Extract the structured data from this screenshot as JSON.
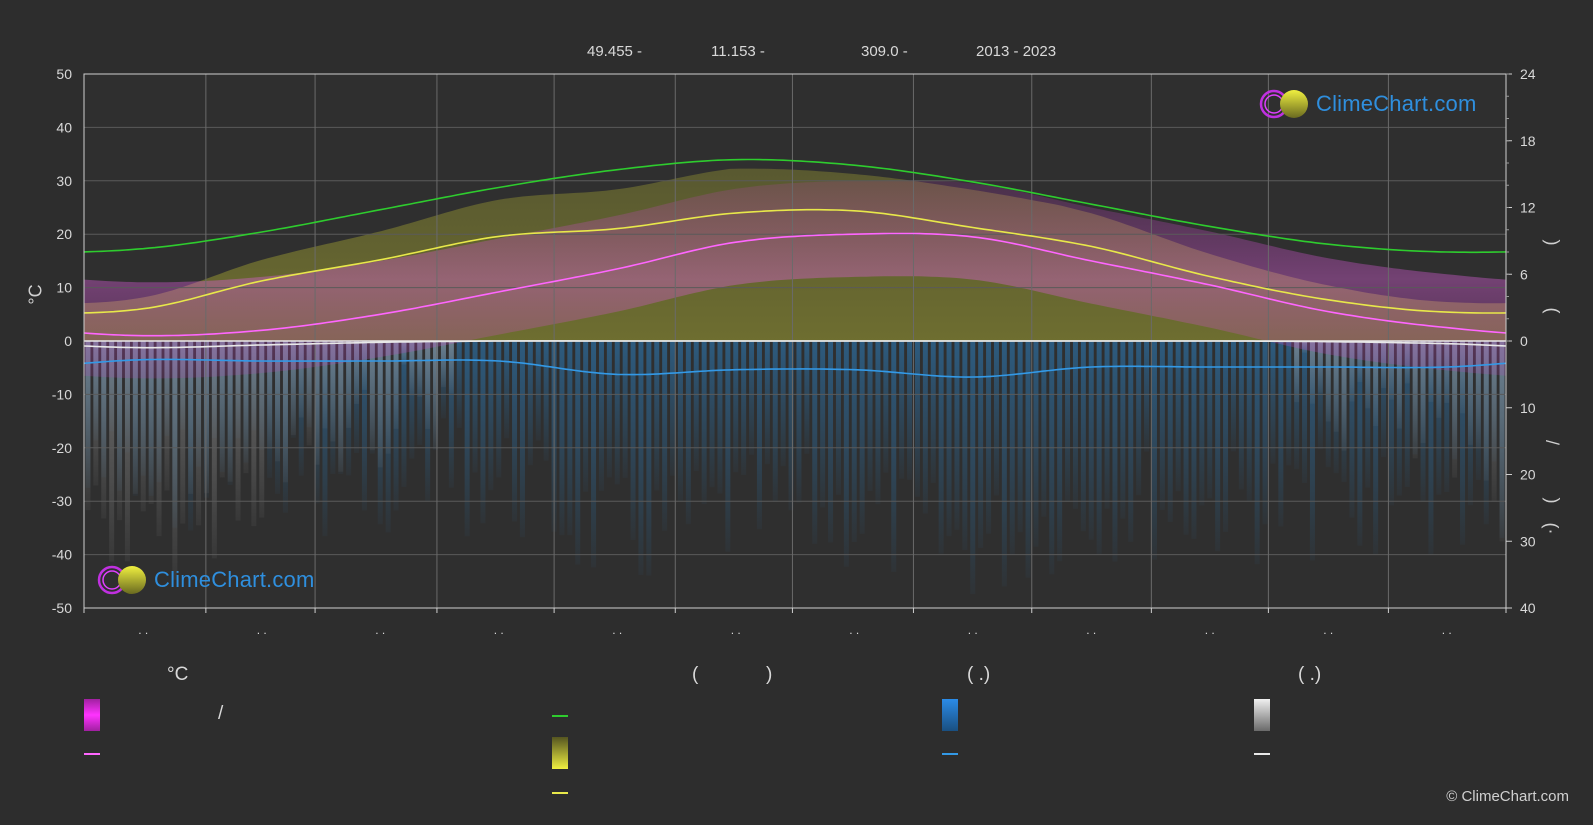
{
  "header": {
    "items": [
      "49.455 -",
      "11.153 -",
      "309.0 -",
      "2013 - 2023"
    ]
  },
  "axes": {
    "left_title": "°C",
    "right_upper_title_glyphs": [
      ")",
      "("
    ],
    "right_lower_title_glyphs": [
      "/",
      ")",
      "(·"
    ]
  },
  "legend": {
    "col1_head": "°C",
    "col1_slash": "/",
    "col2_head_open": "(",
    "col2_head_close": ")",
    "col3_head": "(   .)",
    "col4_head": "(   .)"
  },
  "colors": {
    "background": "#2d2d2d",
    "daylight": "#2ecc2e",
    "sunshine": "#e8e84a",
    "temp_mean": "#ff66ff",
    "temp_range": "#d62ad6",
    "sunshine_fill": "#9a9a2a",
    "precip": "#3399e6",
    "snow": "#d8d8d8",
    "brand": "#2f8fde"
  },
  "logo": {
    "text": "ClimeChart.com"
  },
  "copyright": "© ClimeChart.com",
  "chart_data": {
    "type": "line",
    "months": 12,
    "x_tick_labels": [
      ". .",
      ". .",
      ". .",
      ". .",
      ". .",
      ". .",
      ". .",
      ". .",
      ". .",
      ". .",
      ". .",
      ". ."
    ],
    "left_axis": {
      "ticks": [
        50,
        40,
        30,
        20,
        10,
        0,
        -10,
        -20,
        -30,
        -40,
        -50
      ],
      "range": [
        -50,
        50
      ]
    },
    "right_axis_upper": {
      "ticks": [
        24,
        18,
        12,
        6,
        0
      ],
      "range": [
        0,
        24
      ]
    },
    "right_axis_lower": {
      "ticks": [
        0,
        10,
        20,
        30,
        40
      ],
      "range": [
        0,
        40
      ]
    },
    "grid": true,
    "series": [
      {
        "key": "daylight_hours",
        "axis": "right_upper",
        "monthly": [
          8.3,
          9.8,
          11.8,
          13.8,
          15.4,
          16.3,
          15.8,
          14.3,
          12.3,
          10.3,
          8.7,
          8.0
        ]
      },
      {
        "key": "sunshine_hours",
        "axis": "right_upper",
        "monthly": [
          2.9,
          5.4,
          7.3,
          9.4,
          10.1,
          11.5,
          11.7,
          10.2,
          8.5,
          5.8,
          3.7,
          2.6
        ]
      },
      {
        "key": "temp_mean",
        "axis": "left",
        "monthly": [
          1.0,
          2.0,
          5.0,
          9.2,
          13.5,
          18.5,
          20.0,
          19.5,
          15.0,
          10.5,
          5.5,
          2.5
        ]
      },
      {
        "key": "precip",
        "axis": "right_lower",
        "monthly": [
          2.8,
          3.0,
          3.0,
          3.0,
          5.0,
          4.3,
          4.3,
          5.4,
          3.9,
          3.9,
          3.9,
          3.9
        ]
      },
      {
        "key": "snow",
        "axis": "right_lower",
        "monthly": [
          1.0,
          0.6,
          0.2,
          0.0,
          0.0,
          0.0,
          0.0,
          0.0,
          0.0,
          0.0,
          0.1,
          0.4
        ]
      }
    ]
  }
}
